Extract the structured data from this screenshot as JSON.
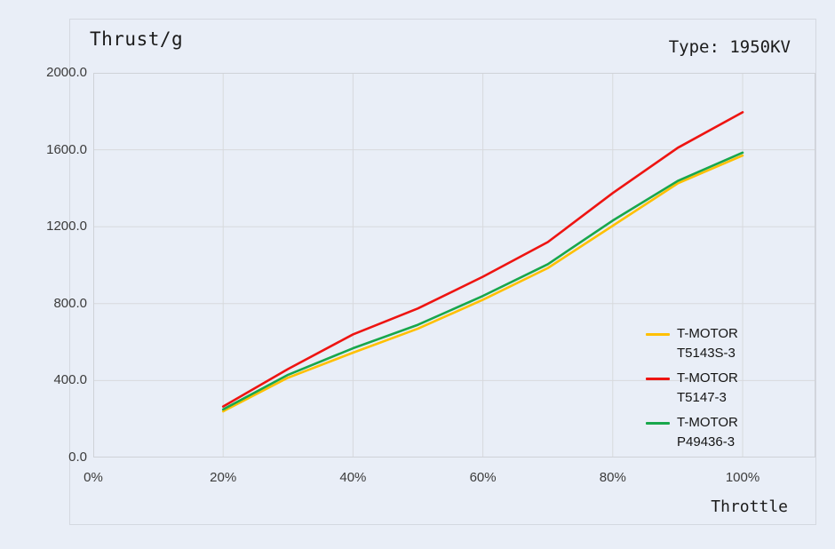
{
  "page": {
    "background": "#e9eef7"
  },
  "header": {
    "title": "Thrust/g",
    "type_label": "Type: 1950KV"
  },
  "axes": {
    "y": {
      "ticks": [
        "0.0",
        "400.0",
        "800.0",
        "1200.0",
        "1600.0",
        "2000.0"
      ]
    },
    "x": {
      "ticks": [
        "0%",
        "20%",
        "40%",
        "60%",
        "80%",
        "100%"
      ],
      "label": "Throttle"
    }
  },
  "legend": {
    "items": [
      {
        "name": "T-MOTOR",
        "model": "T5143S-3",
        "color": "#ffc000"
      },
      {
        "name": "T-MOTOR",
        "model": "T5147-3",
        "color": "#ee1411"
      },
      {
        "name": "T-MOTOR",
        "model": "P49436-3",
        "color": "#18a74c"
      }
    ]
  },
  "chart_data": {
    "type": "line",
    "title": "Thrust/g",
    "xlabel": "Throttle",
    "ylabel": "Thrust/g",
    "annotation": "Type: 1950KV",
    "x": [
      20,
      30,
      40,
      50,
      60,
      70,
      80,
      90,
      100
    ],
    "xlim": [
      0,
      100
    ],
    "ylim": [
      0,
      2000
    ],
    "x_tick_percent": [
      0,
      20,
      40,
      60,
      80,
      100
    ],
    "y_tick_values": [
      0,
      400,
      800,
      1200,
      1600,
      2000
    ],
    "grid": true,
    "legend_position": "right",
    "series": [
      {
        "name": "T-MOTOR T5143S-3",
        "color": "#ffc000",
        "values": [
          240,
          415,
          545,
          670,
          820,
          985,
          1205,
          1425,
          1570
        ]
      },
      {
        "name": "T-MOTOR T5147-3",
        "color": "#ee1411",
        "values": [
          265,
          460,
          640,
          775,
          940,
          1120,
          1375,
          1610,
          1795
        ]
      },
      {
        "name": "T-MOTOR P49436-3",
        "color": "#18a74c",
        "values": [
          250,
          430,
          568,
          690,
          840,
          1005,
          1232,
          1438,
          1585
        ]
      }
    ]
  }
}
